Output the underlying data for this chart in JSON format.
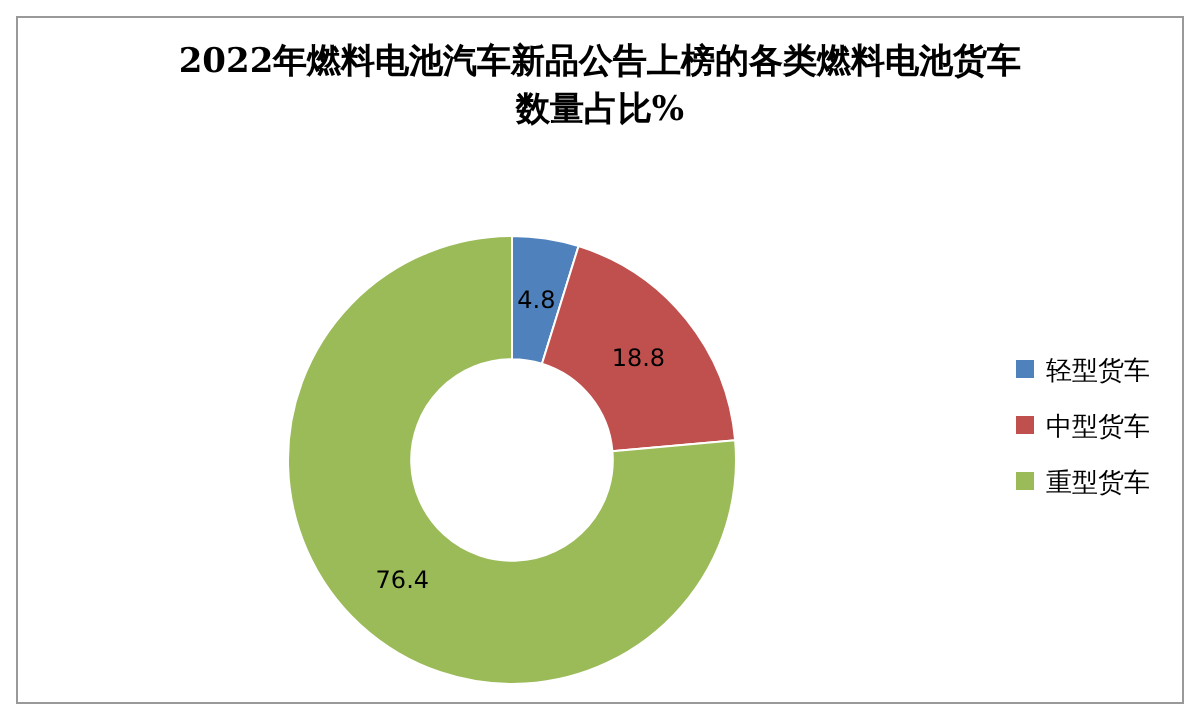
{
  "chart_data": {
    "type": "donut",
    "title": "2022年燃料电池汽车新品公告上榜的各类燃料电池货车数量占比%",
    "categories": [
      "轻型货车",
      "中型货车",
      "重型货车"
    ],
    "values": [
      4.8,
      18.8,
      76.4
    ],
    "colors": [
      "#4f81bd",
      "#c0504d",
      "#9bbb59"
    ],
    "data_labels": true,
    "legend": "right"
  }
}
